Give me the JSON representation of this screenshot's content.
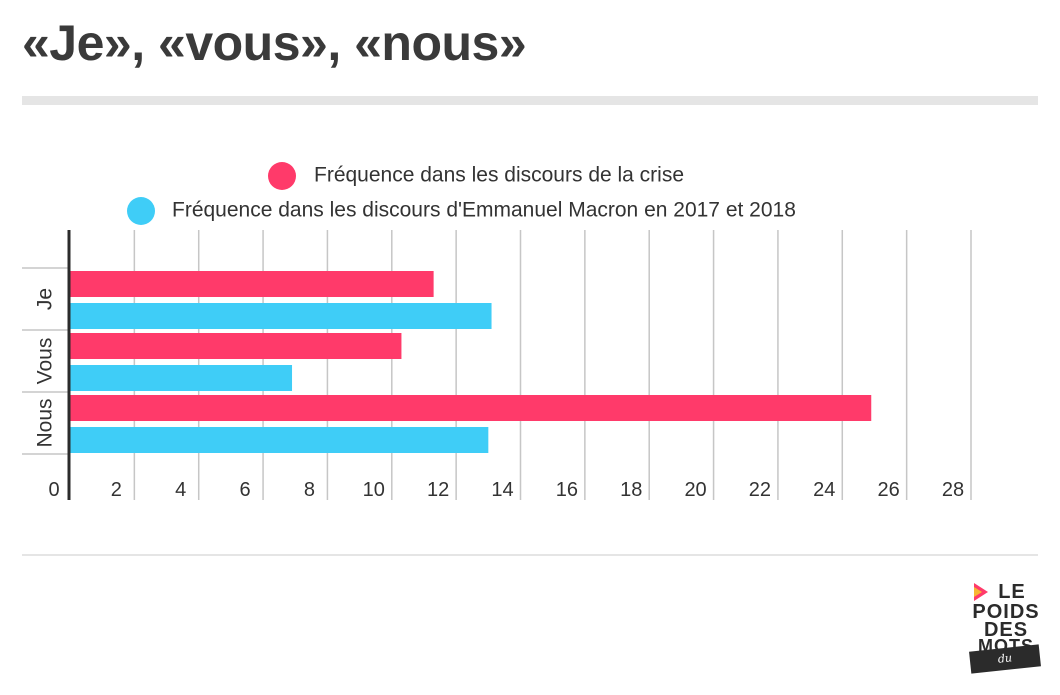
{
  "title": "«Je», «vous», «nous»",
  "colors": {
    "crise": "#ff3a6a",
    "macron": "#3fcdf7",
    "grid": "#c6c6c6",
    "axis": "#2b2b2b",
    "text": "#333333"
  },
  "logo": {
    "row1": "LE",
    "row2": "POIDS",
    "row3": "DES",
    "row4": "MOTS",
    "tagline": "du président",
    "mark_icon": "play-triangle-icon"
  },
  "chart_data": {
    "type": "bar",
    "orientation": "horizontal",
    "categories": [
      "Je",
      "Vous",
      "Nous"
    ],
    "series": [
      {
        "name": "Fréquence dans les discours de la crise",
        "color": "#ff3a6a",
        "values": [
          11.3,
          10.3,
          24.9
        ]
      },
      {
        "name": "Fréquence dans les discours d'Emmanuel Macron en 2017 et 2018",
        "color": "#3fcdf7",
        "values": [
          13.1,
          6.9,
          13.0
        ]
      }
    ],
    "xlim": [
      0,
      28
    ],
    "x_ticks": [
      "0",
      "2",
      "4",
      "6",
      "8",
      "10",
      "12",
      "14",
      "16",
      "18",
      "20",
      "22",
      "24",
      "26",
      "28"
    ],
    "grid": true,
    "legend_position": "top"
  }
}
